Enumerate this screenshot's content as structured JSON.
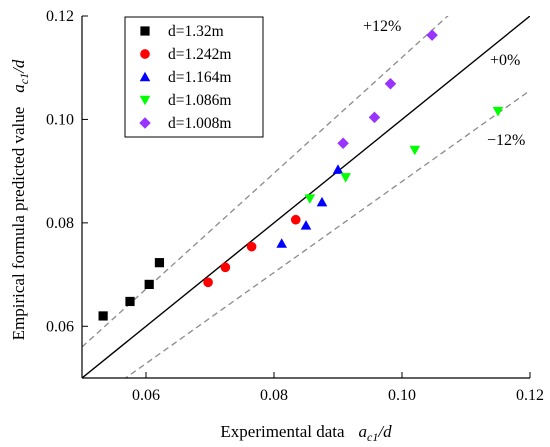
{
  "chart_data": {
    "type": "scatter",
    "title": "",
    "xlabel": "Experimental data",
    "xlabel_math": "a",
    "xlabel_math_sub": "c1",
    "xlabel_math_suffix": "/d",
    "ylabel": "Empirical formula predicted value",
    "ylabel_math": "a",
    "ylabel_math_sub": "c1",
    "ylabel_math_suffix": "/d",
    "xlim": [
      0.05,
      0.12
    ],
    "ylim": [
      0.05,
      0.12
    ],
    "xticks": [
      0.06,
      0.08,
      0.1,
      0.12
    ],
    "xtick_labels": [
      "0.06",
      "0.08",
      "0.10",
      "0.12"
    ],
    "yticks": [
      0.06,
      0.08,
      0.1,
      0.12
    ],
    "ytick_labels": [
      "0.06",
      "0.08",
      "0.10",
      "0.12"
    ],
    "grid": false,
    "legend_position": "top-left",
    "reference_lines": [
      {
        "label": "+12%",
        "slope": 1.12,
        "style": "dashed",
        "color": "#8a8a8a"
      },
      {
        "label": "+0%",
        "slope": 1.0,
        "style": "solid",
        "color": "#000000"
      },
      {
        "label": "−12%",
        "slope": 0.88,
        "style": "dashed",
        "color": "#8a8a8a"
      }
    ],
    "series": [
      {
        "name": "d=1.32m",
        "marker": "square",
        "color": "#000000",
        "points": [
          [
            0.0533,
            0.062
          ],
          [
            0.0575,
            0.0648
          ],
          [
            0.0605,
            0.0681
          ],
          [
            0.0621,
            0.0723
          ]
        ]
      },
      {
        "name": "d=1.242m",
        "marker": "circle",
        "color": "#ff0000",
        "points": [
          [
            0.0697,
            0.0685
          ],
          [
            0.0724,
            0.0714
          ],
          [
            0.0765,
            0.0754
          ],
          [
            0.0834,
            0.0806
          ]
        ]
      },
      {
        "name": "d=1.164m",
        "marker": "triangle-up",
        "color": "#0000ff",
        "points": [
          [
            0.0812,
            0.076
          ],
          [
            0.085,
            0.0795
          ],
          [
            0.0875,
            0.084
          ],
          [
            0.09,
            0.0903
          ]
        ]
      },
      {
        "name": "d=1.086m",
        "marker": "triangle-down",
        "color": "#00ff00",
        "points": [
          [
            0.0856,
            0.0847
          ],
          [
            0.0912,
            0.0888
          ],
          [
            0.102,
            0.0941
          ],
          [
            0.115,
            0.1016
          ]
        ]
      },
      {
        "name": "d=1.008m",
        "marker": "diamond",
        "color": "#9933ff",
        "points": [
          [
            0.0908,
            0.0954
          ],
          [
            0.0957,
            0.1004
          ],
          [
            0.0982,
            0.1069
          ],
          [
            0.1047,
            0.1163
          ]
        ]
      }
    ]
  }
}
